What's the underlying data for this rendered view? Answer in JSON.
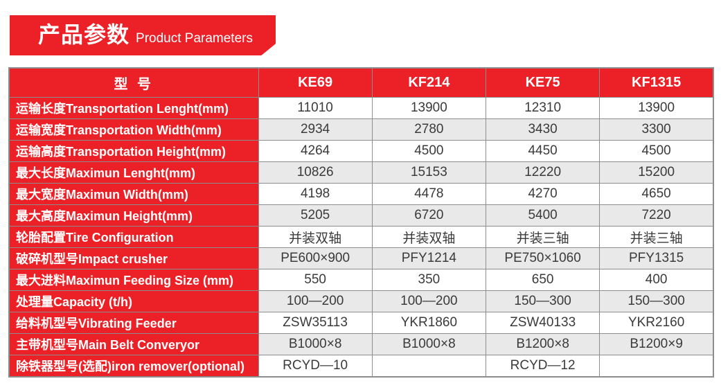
{
  "banner": {
    "title_zh": "产品参数",
    "title_en": "Product Parameters"
  },
  "table": {
    "header": {
      "model_label": "型 号",
      "columns": [
        "KE69",
        "KF214",
        "KE75",
        "KF1315"
      ]
    },
    "rows": [
      {
        "label": "运输长度Transportation Lenght(mm)",
        "values": [
          "11010",
          "13900",
          "12310",
          "13900"
        ]
      },
      {
        "label": "运输宽度Transportation Width(mm)",
        "values": [
          "2934",
          "2780",
          "3430",
          "3300"
        ]
      },
      {
        "label": "运输高度Transportation Height(mm)",
        "values": [
          "4264",
          "4500",
          "4450",
          "4500"
        ]
      },
      {
        "label": "最大长度Maximun Lenght(mm)",
        "values": [
          "10826",
          "15153",
          "12220",
          "15200"
        ]
      },
      {
        "label": "最大宽度Maximun Width(mm)",
        "values": [
          "4198",
          "4478",
          "4270",
          "4650"
        ]
      },
      {
        "label": "最大高度Maximun Height(mm)",
        "values": [
          "5205",
          "6720",
          "5400",
          "7220"
        ]
      },
      {
        "label": "轮胎配置Tire Configuration",
        "values": [
          "并装双轴",
          "并装双轴",
          "并装三轴",
          "并装三轴"
        ]
      },
      {
        "label": "破碎机型号Impact crusher",
        "values": [
          "PE600×900",
          "PFY1214",
          "PE750×1060",
          "PFY1315"
        ]
      },
      {
        "label": "最大进料Maximun Feeding Size (mm)",
        "values": [
          "550",
          "350",
          "650",
          "400"
        ]
      },
      {
        "label": "处理量Capacity (t/h)",
        "values": [
          "100—200",
          "100—200",
          "150—300",
          "150—300"
        ]
      },
      {
        "label": "给料机型号Vibrating Feeder",
        "values": [
          "ZSW35113",
          "YKR1860",
          "ZSW40133",
          "YKR2160"
        ]
      },
      {
        "label": "主带机型号Main Belt Converyor",
        "values": [
          "B1000×8",
          "B1000×8",
          "B1200×8",
          "B1200×9"
        ]
      },
      {
        "label": "除铁器型号(选配)iron remover(optional)",
        "values": [
          "RCYD—10",
          "",
          "RCYD—12",
          ""
        ]
      }
    ]
  },
  "colors": {
    "accent_red": "#ec2127",
    "row_alt_gray": "#e9e9e9",
    "grid_gray": "#8d8d8d",
    "text_dark": "#3a3a3a"
  }
}
